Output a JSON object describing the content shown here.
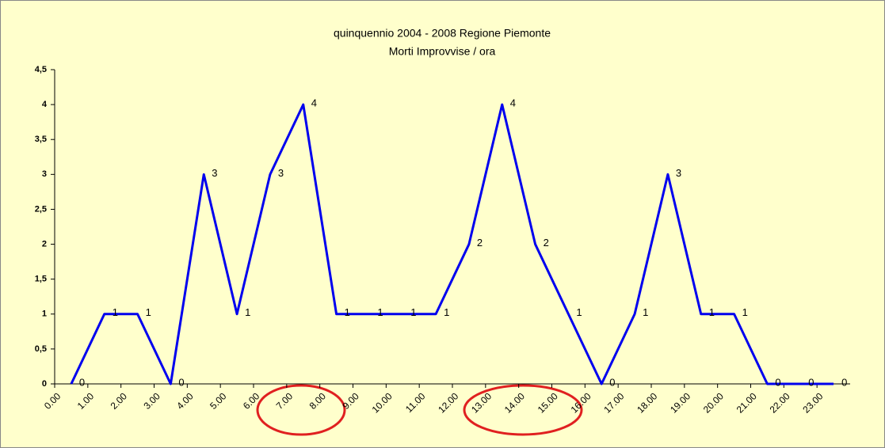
{
  "chart_data": {
    "type": "line",
    "title": "quinquennio 2004 - 2008 Regione Piemonte",
    "subtitle": "Morti Improvvise / ora",
    "categories": [
      "0.00",
      "1.00",
      "2.00",
      "3.00",
      "4.00",
      "5.00",
      "6.00",
      "7.00",
      "8.00",
      "9.00",
      "10.00",
      "11.00",
      "12.00",
      "13.00",
      "14.00",
      "15.00",
      "16.00",
      "17.00",
      "18.00",
      "19.00",
      "20.00",
      "21.00",
      "22.00",
      "23.00"
    ],
    "values": [
      0,
      1,
      1,
      0,
      3,
      1,
      3,
      4,
      1,
      1,
      1,
      1,
      2,
      4,
      2,
      1,
      0,
      1,
      3,
      1,
      1,
      0,
      0,
      0
    ],
    "color": "#0000ee",
    "ylim": [
      0,
      4.5
    ],
    "yticks": [
      0,
      {
        "value": 0.5,
        "label": "0,5"
      },
      1,
      {
        "value": 1.5,
        "label": "1,5"
      },
      2,
      {
        "value": 2.5,
        "label": "2,5"
      },
      3,
      {
        "value": 3.5,
        "label": "3,5"
      },
      4,
      {
        "value": 4.5,
        "label": "4,5"
      }
    ],
    "grid": false
  }
}
